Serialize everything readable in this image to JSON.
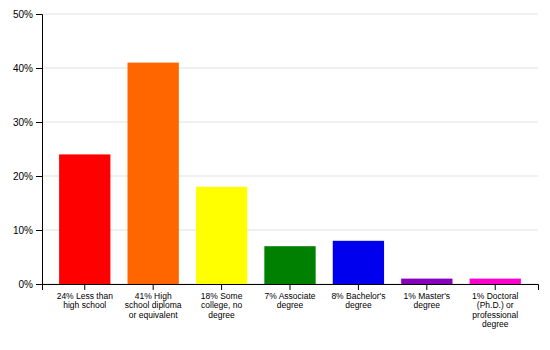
{
  "chart_data": {
    "type": "bar",
    "categories": [
      "24% Less than\nhigh school",
      "41% High\nschool diploma\nor equivalent",
      "18% Some\ncollege, no\ndegree",
      "7% Associate\ndegree",
      "8% Bachelor's\ndegree",
      "1% Master's\ndegree",
      "1% Doctoral\n(Ph.D.) or\nprofessional\ndegree"
    ],
    "values": [
      24,
      41,
      18,
      7,
      8,
      1,
      1
    ],
    "colors": [
      "#ff0000",
      "#ff6600",
      "#ffff00",
      "#008000",
      "#0000ee",
      "#8800bb",
      "#ff00cc"
    ],
    "ylim": [
      0,
      50
    ],
    "yticks": [
      {
        "value": 0,
        "label": "0%"
      },
      {
        "value": 10,
        "label": "10%"
      },
      {
        "value": 20,
        "label": "20%"
      },
      {
        "value": 30,
        "label": "30%"
      },
      {
        "value": 40,
        "label": "40%"
      },
      {
        "value": 50,
        "label": "50%"
      }
    ],
    "grid": true
  }
}
